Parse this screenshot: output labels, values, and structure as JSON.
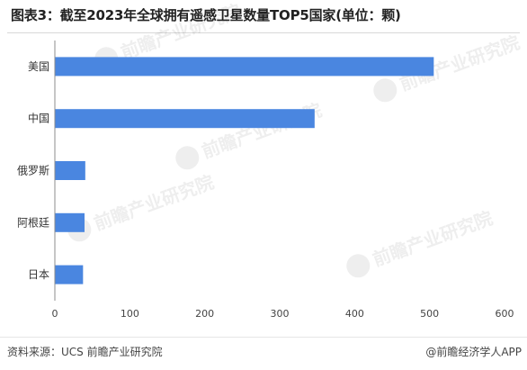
{
  "title": "图表3：截至2023年全球拥有遥感卫星数量TOP5国家(单位：颗)",
  "footer": {
    "source": "资料来源：UCS 前瞻产业研究院",
    "brand": "@前瞻经济学人APP"
  },
  "watermark": "前瞻产业研究院",
  "chart_data": {
    "type": "bar",
    "orientation": "horizontal",
    "categories": [
      "美国",
      "中国",
      "俄罗斯",
      "阿根廷",
      "日本"
    ],
    "values": [
      505,
      346,
      40,
      39,
      37
    ],
    "xlim": [
      0,
      600
    ],
    "xticks": [
      "0",
      "100",
      "200",
      "300",
      "400",
      "500",
      "600"
    ],
    "bar_color": "#4a86e0",
    "grid": false,
    "legend": "none"
  }
}
